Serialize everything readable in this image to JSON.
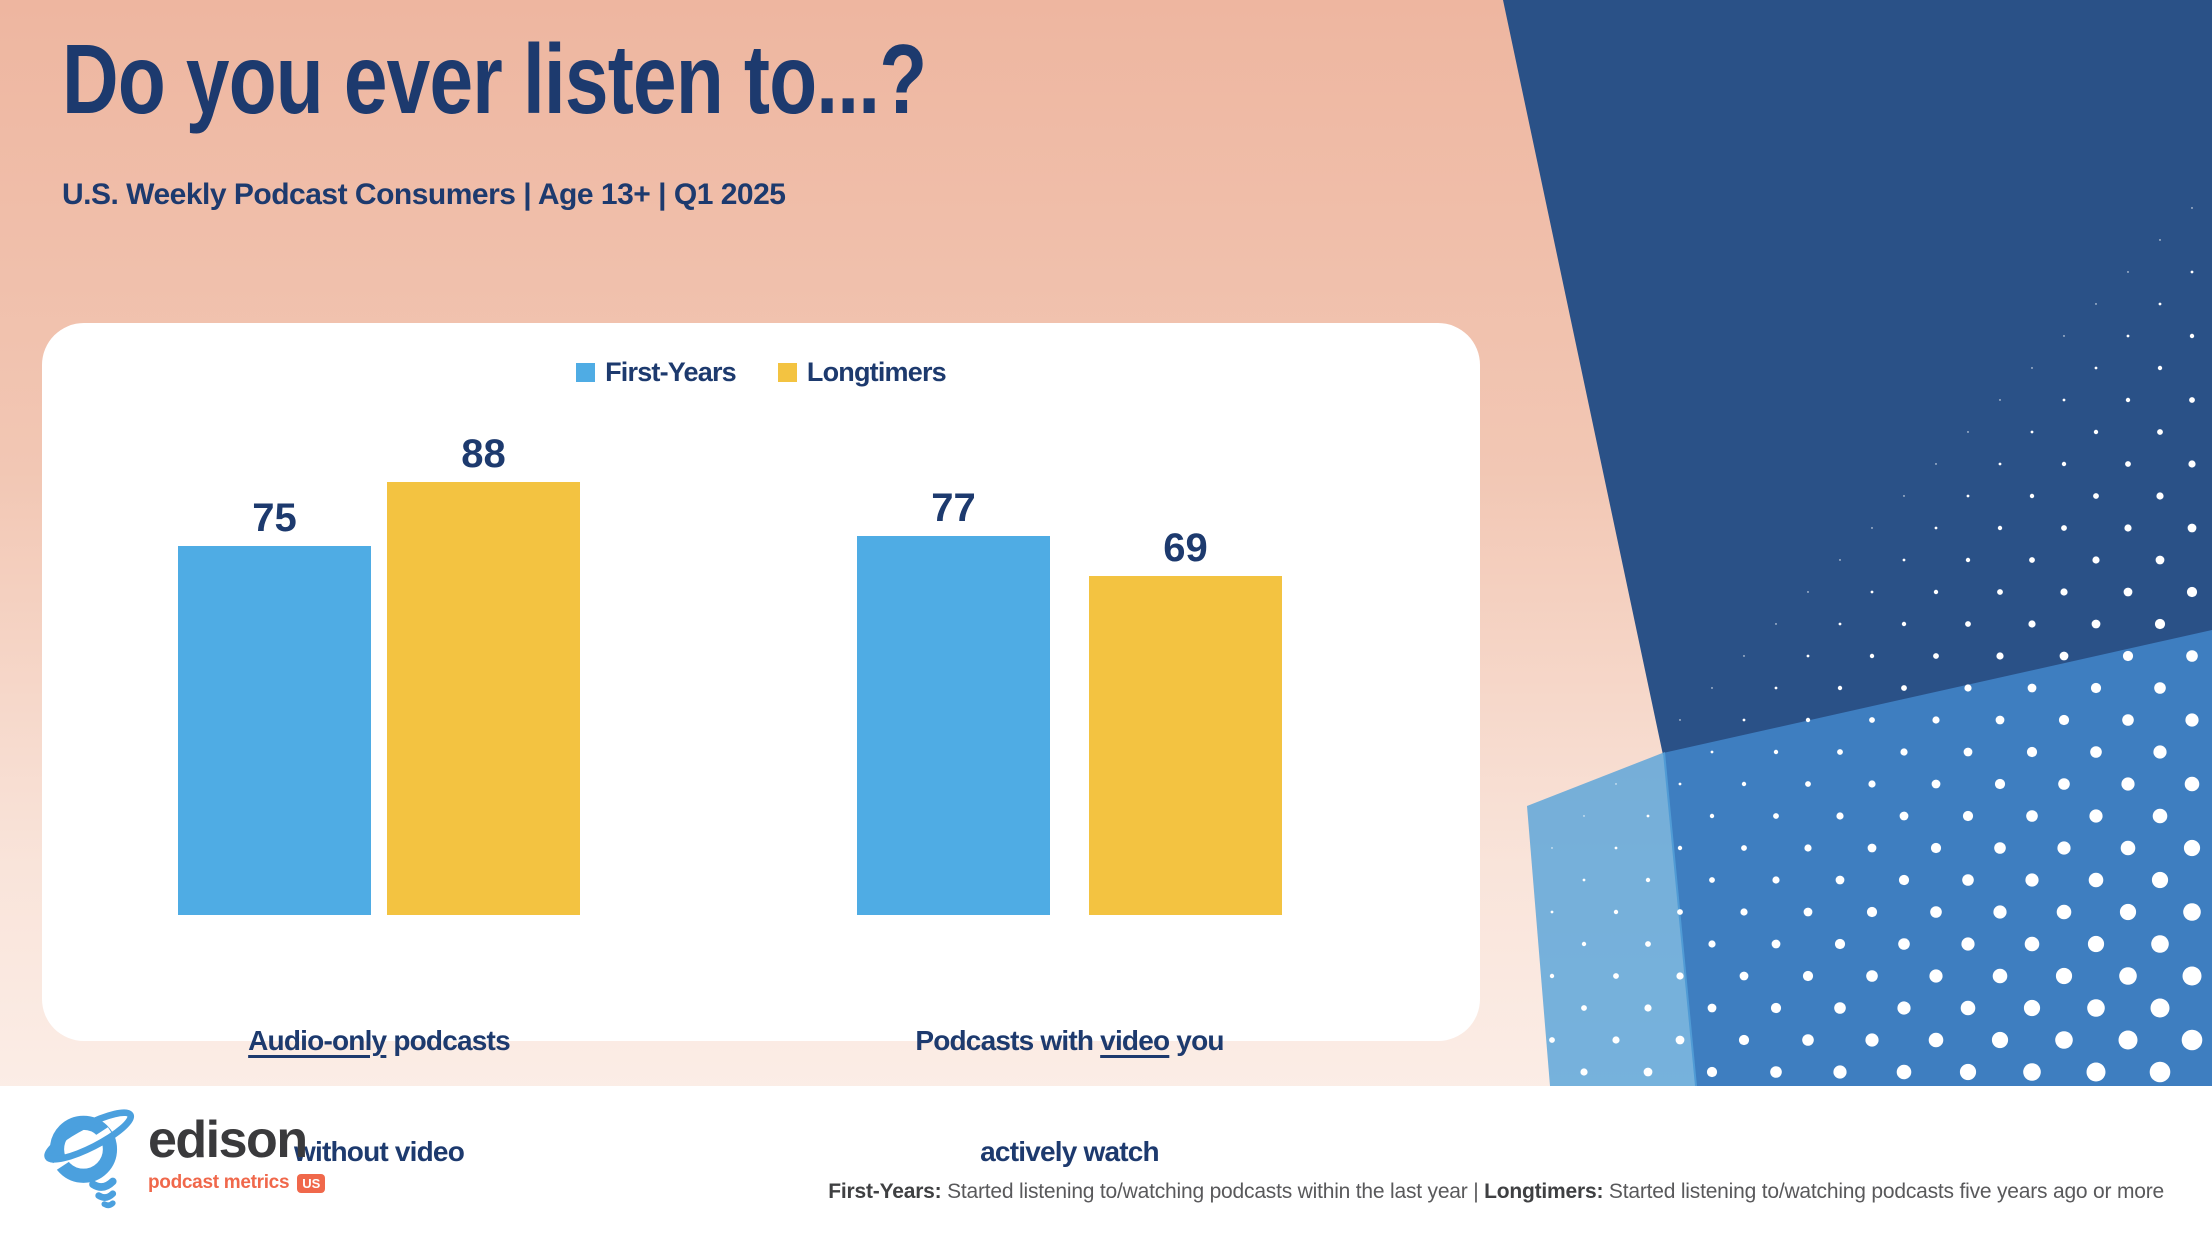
{
  "slide": {
    "title": "Do you ever listen to...?",
    "subtitle": "U.S. Weekly Podcast Consumers | Age 13+ | Q1 2025"
  },
  "chart_data": {
    "type": "bar",
    "title": "Do you ever listen to...?",
    "subtitle": "U.S. Weekly Podcast Consumers | Age 13+ | Q1 2025",
    "categories": [
      "Audio-only podcasts without video",
      "Podcasts with video you actively watch"
    ],
    "series": [
      {
        "name": "First-Years",
        "color": "#4FACE4",
        "values": [
          75,
          77
        ]
      },
      {
        "name": "Longtimers",
        "color": "#F3C341",
        "values": [
          88,
          69
        ]
      }
    ],
    "ylim": [
      0,
      100
    ],
    "grid": false,
    "legend_position": "top-center",
    "value_labels": true,
    "unit": "percent of respondents"
  },
  "category_labels": [
    {
      "line1_prefix": "",
      "line1_underlined": "Audio-only",
      "line1_suffix": " podcasts",
      "line2": "without video"
    },
    {
      "line1_prefix": "Podcasts with ",
      "line1_underlined": "video",
      "line1_suffix": " you",
      "line2": "actively watch"
    }
  ],
  "footnote": {
    "term1": "First-Years:",
    "def1": " Started listening to/watching podcasts within the last year ",
    "sep": "|",
    "term2": " Longtimers:",
    "def2": " Started listening to/watching podcasts five years ago or more"
  },
  "logo": {
    "brand": "edison",
    "tagline": "podcast metrics",
    "badge": "US"
  },
  "colors": {
    "title_navy": "#1d3a6e",
    "bar_blue": "#4FACE4",
    "bar_yellow": "#F3C341",
    "bg_navy": "#2a5187",
    "bg_blue": "#3e7ec0",
    "bg_light_blue": "#55a3d9",
    "peach_top": "#eeb6a0",
    "logo_orange": "#f0684b",
    "logo_dark": "#3a3a3c",
    "logo_blue": "#4BA0DE"
  }
}
